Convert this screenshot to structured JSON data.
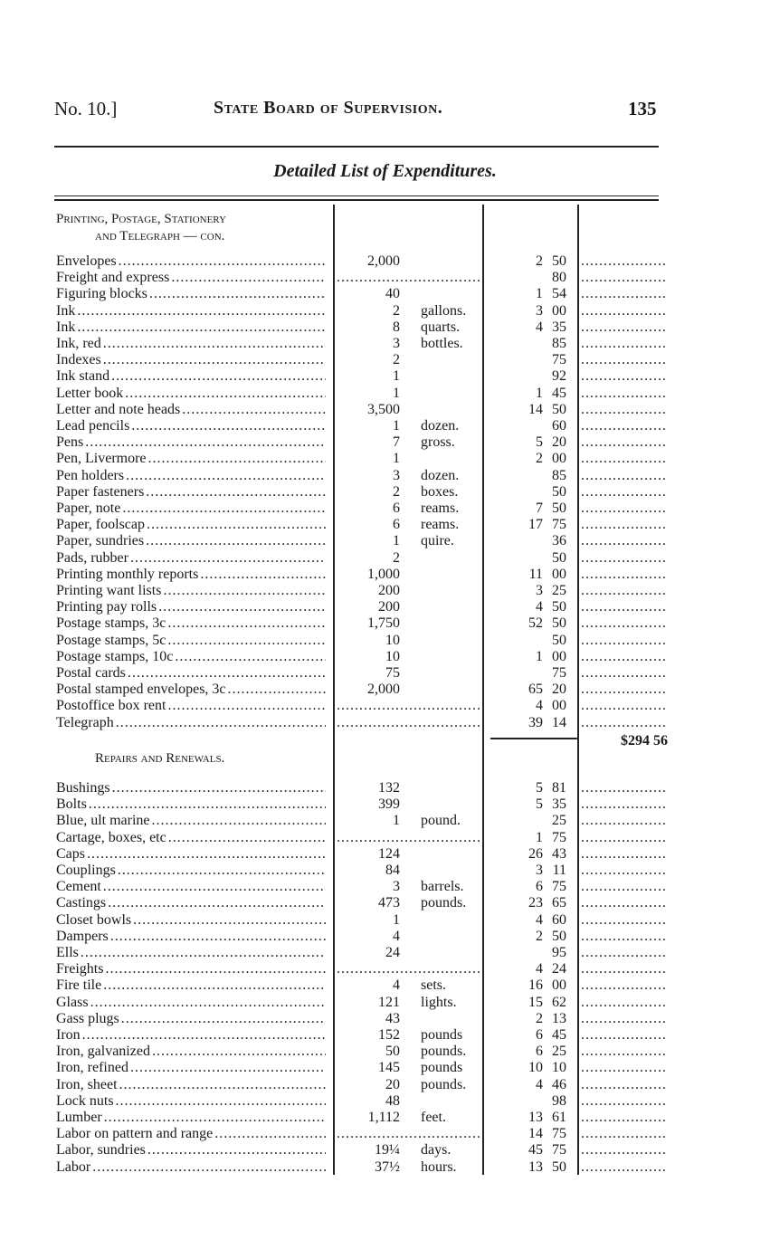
{
  "header": {
    "number": "No. 10.]",
    "title": "State Board of Supervision.",
    "page": "135"
  },
  "title": "Detailed List of Expenditures.",
  "sections": [
    {
      "heading": [
        "Printing, Postage, Stationery",
        "and Telegraph — con."
      ],
      "items": [
        {
          "name": "Envelopes",
          "qty": "2,000",
          "unit": "",
          "dollars": "2",
          "cents": "50"
        },
        {
          "name": "Freight and express",
          "qty": null,
          "unit": "",
          "dollars": "",
          "cents": "80"
        },
        {
          "name": "Figuring blocks",
          "qty": "40",
          "unit": "",
          "dollars": "1",
          "cents": "54"
        },
        {
          "name": "Ink",
          "qty": "2",
          "unit": "gallons.",
          "dollars": "3",
          "cents": "00"
        },
        {
          "name": "Ink",
          "qty": "8",
          "unit": "quarts.",
          "dollars": "4",
          "cents": "35"
        },
        {
          "name": "Ink, red",
          "qty": "3",
          "unit": "bottles.",
          "dollars": "",
          "cents": "85"
        },
        {
          "name": "Indexes",
          "qty": "2",
          "unit": "",
          "dollars": "",
          "cents": "75"
        },
        {
          "name": "Ink stand",
          "qty": "1",
          "unit": "",
          "dollars": "",
          "cents": "92"
        },
        {
          "name": "Letter book",
          "qty": "1",
          "unit": "",
          "dollars": "1",
          "cents": "45"
        },
        {
          "name": "Letter and note heads",
          "qty": "3,500",
          "unit": "",
          "dollars": "14",
          "cents": "50"
        },
        {
          "name": "Lead pencils",
          "qty": "1",
          "unit": "dozen.",
          "dollars": "",
          "cents": "60"
        },
        {
          "name": "Pens",
          "qty": "7",
          "unit": "gross.",
          "dollars": "5",
          "cents": "20"
        },
        {
          "name": "Pen, Livermore",
          "qty": "1",
          "unit": "",
          "dollars": "2",
          "cents": "00"
        },
        {
          "name": "Pen holders",
          "qty": "3",
          "unit": "dozen.",
          "dollars": "",
          "cents": "85"
        },
        {
          "name": "Paper fasteners",
          "qty": "2",
          "unit": "boxes.",
          "dollars": "",
          "cents": "50"
        },
        {
          "name": "Paper, note",
          "qty": "6",
          "unit": "reams.",
          "dollars": "7",
          "cents": "50"
        },
        {
          "name": "Paper, foolscap",
          "qty": "6",
          "unit": "reams.",
          "dollars": "17",
          "cents": "75"
        },
        {
          "name": "Paper, sundries",
          "qty": "1",
          "unit": "quire.",
          "dollars": "",
          "cents": "36"
        },
        {
          "name": "Pads, rubber",
          "qty": "2",
          "unit": "",
          "dollars": "",
          "cents": "50"
        },
        {
          "name": "Printing monthly reports",
          "qty": "1,000",
          "unit": "",
          "dollars": "11",
          "cents": "00"
        },
        {
          "name": "Printing want lists",
          "qty": "200",
          "unit": "",
          "dollars": "3",
          "cents": "25"
        },
        {
          "name": "Printing pay rolls",
          "qty": "200",
          "unit": "",
          "dollars": "4",
          "cents": "50"
        },
        {
          "name": "Postage stamps, 3c",
          "qty": "1,750",
          "unit": "",
          "dollars": "52",
          "cents": "50"
        },
        {
          "name": "Postage stamps, 5c",
          "qty": "10",
          "unit": "",
          "dollars": "",
          "cents": "50"
        },
        {
          "name": "Postage stamps, 10c",
          "qty": "10",
          "unit": "",
          "dollars": "1",
          "cents": "00"
        },
        {
          "name": "Postal cards",
          "qty": "75",
          "unit": "",
          "dollars": "",
          "cents": "75"
        },
        {
          "name": "Postal stamped envelopes, 3c",
          "qty": "2,000",
          "unit": "",
          "dollars": "65",
          "cents": "20"
        },
        {
          "name": "Postoffice box rent",
          "qty": null,
          "unit": "",
          "dollars": "4",
          "cents": "00"
        },
        {
          "name": "Telegraph",
          "qty": null,
          "unit": "",
          "dollars": "39",
          "cents": "14"
        }
      ],
      "total": "$294 56"
    },
    {
      "heading": [
        "Repairs and Renewals."
      ],
      "items": [
        {
          "name": "Bushings",
          "qty": "132",
          "unit": "",
          "dollars": "5",
          "cents": "81"
        },
        {
          "name": "Bolts",
          "qty": "399",
          "unit": "",
          "dollars": "5",
          "cents": "35"
        },
        {
          "name": "Blue, ult marine",
          "qty": "1",
          "unit": "pound.",
          "dollars": "",
          "cents": "25"
        },
        {
          "name": "Cartage, boxes, etc",
          "qty": null,
          "unit": "",
          "dollars": "1",
          "cents": "75"
        },
        {
          "name": "Caps",
          "qty": "124",
          "unit": "",
          "dollars": "26",
          "cents": "43"
        },
        {
          "name": "Couplings",
          "qty": "84",
          "unit": "",
          "dollars": "3",
          "cents": "11"
        },
        {
          "name": "Cement",
          "qty": "3",
          "unit": "barrels.",
          "dollars": "6",
          "cents": "75"
        },
        {
          "name": "Castings",
          "qty": "473",
          "unit": "pounds.",
          "dollars": "23",
          "cents": "65"
        },
        {
          "name": "Closet bowls",
          "qty": "1",
          "unit": "",
          "dollars": "4",
          "cents": "60"
        },
        {
          "name": "Dampers",
          "qty": "4",
          "unit": "",
          "dollars": "2",
          "cents": "50"
        },
        {
          "name": "Ells",
          "qty": "24",
          "unit": "",
          "dollars": "",
          "cents": "95"
        },
        {
          "name": "Freights",
          "qty": null,
          "unit": "",
          "dollars": "4",
          "cents": "24"
        },
        {
          "name": "Fire tile",
          "qty": "4",
          "unit": "sets.",
          "dollars": "16",
          "cents": "00"
        },
        {
          "name": "Glass",
          "qty": "121",
          "unit": "lights.",
          "dollars": "15",
          "cents": "62"
        },
        {
          "name": "Gass plugs",
          "qty": "43",
          "unit": "",
          "dollars": "2",
          "cents": "13"
        },
        {
          "name": "Iron",
          "qty": "152",
          "unit": "pounds",
          "dollars": "6",
          "cents": "45"
        },
        {
          "name": "Iron, galvanized",
          "qty": "50",
          "unit": "pounds.",
          "dollars": "6",
          "cents": "25"
        },
        {
          "name": "Iron, refined",
          "qty": "145",
          "unit": "pounds",
          "dollars": "10",
          "cents": "10"
        },
        {
          "name": "Iron, sheet",
          "qty": "20",
          "unit": "pounds.",
          "dollars": "4",
          "cents": "46"
        },
        {
          "name": "Lock nuts",
          "qty": "48",
          "unit": "",
          "dollars": "",
          "cents": "98"
        },
        {
          "name": "Lumber",
          "qty": "1,112",
          "unit": "feet.",
          "dollars": "13",
          "cents": "61"
        },
        {
          "name": "Labor on pattern and range",
          "qty": null,
          "unit": "",
          "dollars": "14",
          "cents": "75"
        },
        {
          "name": "Labor, sundries",
          "qty": "19¼",
          "unit": "days.",
          "dollars": "45",
          "cents": "75"
        },
        {
          "name": "Labor",
          "qty": "37½",
          "unit": "hours.",
          "dollars": "13",
          "cents": "50"
        }
      ]
    }
  ]
}
